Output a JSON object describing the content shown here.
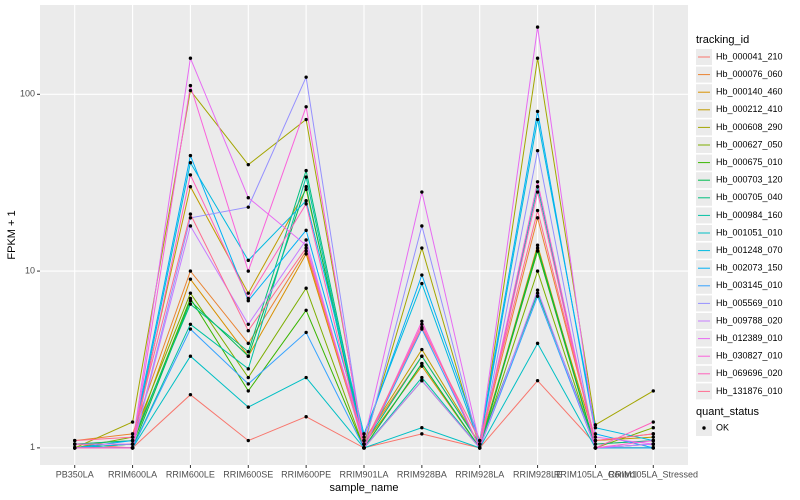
{
  "chart_data": {
    "type": "line",
    "x_label": "sample_name",
    "y_label": "FPKM + 1",
    "log_y": true,
    "grid": true,
    "legend_title": "tracking_id",
    "legend_position": "right",
    "point_legend_title": "quant_status",
    "point_legend_entries": [
      "OK"
    ],
    "point_color": "#000000",
    "categories": [
      "PB350LA",
      "RRIM600LA",
      "RRIM600LE",
      "RRIM600SE",
      "RRIM600PE",
      "RRIM901LA",
      "RRIM928BA",
      "RRIM928LA",
      "RRIM928LE",
      "RRIM105LA_Control",
      "RRIM105LA_Stressed"
    ],
    "ylim": [
      0.8,
      320
    ],
    "yticks": [
      1,
      10,
      100
    ],
    "series": [
      {
        "name": "Hb_000041_210",
        "color": "#F8766D",
        "values": [
          1.05,
          1.0,
          2.0,
          1.1,
          1.5,
          1.0,
          1.2,
          1.0,
          2.4,
          1.05,
          1.1
        ]
      },
      {
        "name": "Hb_000076_060",
        "color": "#EA8331",
        "values": [
          1.1,
          1.2,
          10,
          3.9,
          13,
          1.1,
          3.3,
          1.05,
          20,
          1.1,
          1.2
        ]
      },
      {
        "name": "Hb_000140_460",
        "color": "#D89000",
        "values": [
          1.0,
          1.05,
          9,
          3.3,
          12.5,
          1.05,
          2.9,
          1.0,
          14,
          1.0,
          1.05
        ]
      },
      {
        "name": "Hb_000212_410",
        "color": "#C09B00",
        "values": [
          1.05,
          1.1,
          30,
          7.5,
          29,
          1.1,
          3.6,
          1.05,
          13,
          1.1,
          1.15
        ]
      },
      {
        "name": "Hb_000608_290",
        "color": "#A3A500",
        "values": [
          1.0,
          1.4,
          105,
          40,
          72,
          1.05,
          13.5,
          1.0,
          160,
          1.35,
          2.1
        ]
      },
      {
        "name": "Hb_000627_050",
        "color": "#7CAE00",
        "values": [
          1.0,
          1.15,
          7.5,
          2.5,
          8,
          1.0,
          3.0,
          1.0,
          10,
          1.0,
          1.3
        ]
      },
      {
        "name": "Hb_000675_010",
        "color": "#39B600",
        "values": [
          1.0,
          1.05,
          7,
          2.1,
          6,
          1.0,
          2.4,
          1.0,
          13,
          1.0,
          1.0
        ]
      },
      {
        "name": "Hb_000703_120",
        "color": "#00BB4E",
        "values": [
          1.0,
          1.0,
          6.8,
          3.3,
          30,
          1.0,
          3.0,
          1.0,
          13.5,
          1.0,
          1.0
        ]
      },
      {
        "name": "Hb_000705_040",
        "color": "#00BF7D",
        "values": [
          1.05,
          1.1,
          6.5,
          3.5,
          37,
          1.05,
          3.3,
          1.05,
          7.5,
          1.05,
          1.1
        ]
      },
      {
        "name": "Hb_000984_160",
        "color": "#00C1A3",
        "values": [
          1.0,
          1.0,
          5,
          2.8,
          34,
          1.0,
          2.5,
          1.0,
          30,
          1.0,
          1.0
        ]
      },
      {
        "name": "Hb_001051_010",
        "color": "#00BFC4",
        "values": [
          1.0,
          1.0,
          3.3,
          1.7,
          2.5,
          1.0,
          1.3,
          1.0,
          3.9,
          1.0,
          1.05
        ]
      },
      {
        "name": "Hb_001248_070",
        "color": "#00BAE0",
        "values": [
          1.0,
          1.05,
          41,
          11.5,
          25,
          1.2,
          8.5,
          1.05,
          72,
          1.3,
          1.1
        ]
      },
      {
        "name": "Hb_002073_150",
        "color": "#00B0F6",
        "values": [
          1.0,
          1.1,
          45,
          6.8,
          17,
          1.15,
          9.5,
          1.1,
          80,
          1.2,
          1.0
        ]
      },
      {
        "name": "Hb_003145_010",
        "color": "#35A2FF",
        "values": [
          1.0,
          1.0,
          4.7,
          2.3,
          4.5,
          1.0,
          4.7,
          1.0,
          7.2,
          1.0,
          1.0
        ]
      },
      {
        "name": "Hb_005569_010",
        "color": "#9590FF",
        "values": [
          1.0,
          1.0,
          20,
          23,
          125,
          1.0,
          18,
          1.0,
          48,
          1.0,
          1.05
        ]
      },
      {
        "name": "Hb_009788_020",
        "color": "#C77CFF",
        "values": [
          1.0,
          1.0,
          18,
          5,
          15,
          1.0,
          2.4,
          1.0,
          7.8,
          1.0,
          1.05
        ]
      },
      {
        "name": "Hb_012389_010",
        "color": "#E76BF3",
        "values": [
          1.05,
          1.05,
          160,
          26,
          14,
          1.1,
          28,
          1.05,
          240,
          1.15,
          1.05
        ]
      },
      {
        "name": "Hb_030827_010",
        "color": "#FA62DB",
        "values": [
          1.0,
          1.0,
          112,
          10,
          85,
          1.0,
          5.2,
          1.0,
          32,
          1.0,
          1.1
        ]
      },
      {
        "name": "Hb_069696_020",
        "color": "#FF62BC",
        "values": [
          1.0,
          1.0,
          35,
          7,
          24,
          1.0,
          5,
          1.0,
          28,
          1.0,
          1.4
        ]
      },
      {
        "name": "Hb_131876_010",
        "color": "#FF6C91",
        "values": [
          1.1,
          1.15,
          21,
          4.6,
          13.5,
          1.05,
          4.8,
          1.1,
          22,
          1.1,
          1.2
        ]
      }
    ]
  }
}
